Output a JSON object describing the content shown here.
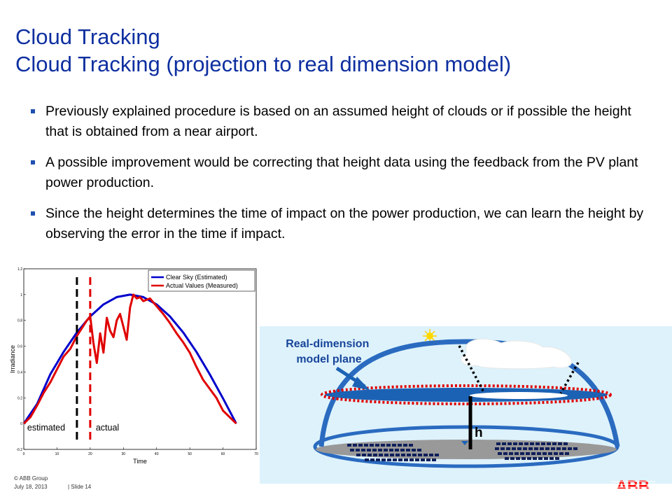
{
  "slide": {
    "title": "Cloud Tracking",
    "subtitle": "Cloud Tracking (projection to real dimension model)",
    "bullets": [
      "Previously explained procedure is based on an assumed height of clouds or if possible the height that is obtained from a near airport.",
      "A possible improvement would be correcting that height data using the feedback from the PV plant power production.",
      "Since the height determines the time of impact on the power production, we can learn the height by observing the error in the time if impact."
    ]
  },
  "chart_data": {
    "type": "line",
    "xlabel": "Time",
    "ylabel": "Irradiance",
    "xlim": [
      0,
      70
    ],
    "ylim": [
      -0.2,
      1.2
    ],
    "xticks": [
      "0",
      "10",
      "20",
      "30",
      "40",
      "50",
      "60",
      "70"
    ],
    "yticks": [
      "-0.2",
      "0",
      "0.2",
      "0.4",
      "0.6",
      "0.8",
      "1",
      "1.2"
    ],
    "legend_position": "top-right",
    "grid": false,
    "series": [
      {
        "name": "Clear Sky (Estimated)",
        "color": "#0000cc",
        "x": [
          0,
          4,
          8,
          12,
          16,
          20,
          24,
          28,
          32,
          36,
          40,
          44,
          48,
          52,
          56,
          60,
          64
        ],
        "y": [
          0.0,
          0.152,
          0.383,
          0.556,
          0.707,
          0.831,
          0.924,
          0.981,
          1.0,
          0.981,
          0.924,
          0.831,
          0.707,
          0.556,
          0.383,
          0.195,
          0.0
        ]
      },
      {
        "name": "Actual Values (Measured)",
        "color": "#e00000",
        "x": [
          0,
          2,
          4,
          6,
          8,
          10,
          12,
          14,
          16,
          18,
          19,
          20,
          21,
          22,
          23,
          24,
          25,
          26,
          27,
          28,
          29,
          30,
          31,
          32,
          33,
          34,
          35,
          36,
          38,
          40,
          42,
          44,
          46,
          48,
          50,
          52,
          54,
          56,
          58,
          60,
          62,
          64
        ],
        "y": [
          0.0,
          0.05,
          0.14,
          0.24,
          0.32,
          0.42,
          0.52,
          0.58,
          0.68,
          0.76,
          0.8,
          0.83,
          0.62,
          0.47,
          0.7,
          0.55,
          0.82,
          0.72,
          0.67,
          0.8,
          0.85,
          0.75,
          0.65,
          0.9,
          1.0,
          0.97,
          0.98,
          0.95,
          0.97,
          0.91,
          0.85,
          0.78,
          0.7,
          0.63,
          0.55,
          0.44,
          0.34,
          0.27,
          0.2,
          0.1,
          0.05,
          0.0
        ]
      }
    ],
    "annotations": [
      {
        "text": "estimated",
        "x": 16,
        "color": "#000000"
      },
      {
        "text": "actual",
        "x": 20,
        "color": "#e00000"
      }
    ]
  },
  "diagram": {
    "plane_label": "Real-dimension model plane",
    "height_label": "h"
  },
  "footer": {
    "copyright": "© ABB Group",
    "date": "July 18, 2013",
    "slide": "| Slide 14",
    "logo": "ABB"
  },
  "colors": {
    "title": "#0e2fa0",
    "bullet": "#1f4fb0",
    "diagram_bg": "#ddf2fb",
    "dome": "#2a6bc0",
    "red_dotted": "#e00000",
    "logo": "#ff0000"
  }
}
